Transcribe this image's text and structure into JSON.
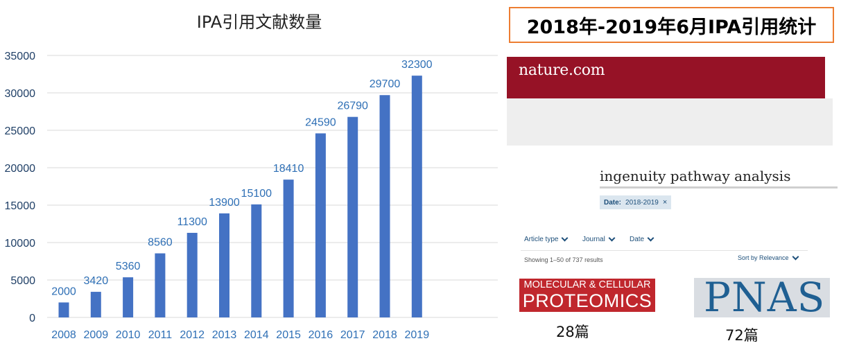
{
  "chart_data": {
    "type": "bar",
    "title": "IPA引用文献数量",
    "categories": [
      "2008",
      "2009",
      "2010",
      "2011",
      "2012",
      "2013",
      "2014",
      "2015",
      "2016",
      "2017",
      "2018",
      "2019"
    ],
    "values": [
      2000,
      3420,
      5360,
      8560,
      11300,
      13900,
      15100,
      18410,
      24590,
      26790,
      29700,
      32300
    ],
    "yticks": [
      "0",
      "5000",
      "10000",
      "15000",
      "20000",
      "25000",
      "30000",
      "35000"
    ],
    "ylim": [
      0,
      35000
    ],
    "grid": true,
    "bar_color": "#4472c4",
    "label_color": "#2e6fb5"
  },
  "stats_panel": {
    "title": "2018年-2019年6月IPA引用统计",
    "border_color": "#ed7d31"
  },
  "nature": {
    "logo": "nature.com",
    "brand_color": "#961226",
    "query": "ingenuity pathway analysis",
    "filter_key": "Date:",
    "filter_value": "2018-2019",
    "filter_close": "×",
    "facets": [
      "Article type",
      "Journal",
      "Date"
    ],
    "results_text": "Showing 1–50 of 737 results",
    "sort_label": "Sort by Relevance"
  },
  "journals": {
    "mcp": {
      "line1": "MOLECULAR & CELLULAR",
      "line2": "PROTEOMICS",
      "count": "28篇"
    },
    "pnas": {
      "name": "PNAS",
      "count": "72篇"
    }
  }
}
